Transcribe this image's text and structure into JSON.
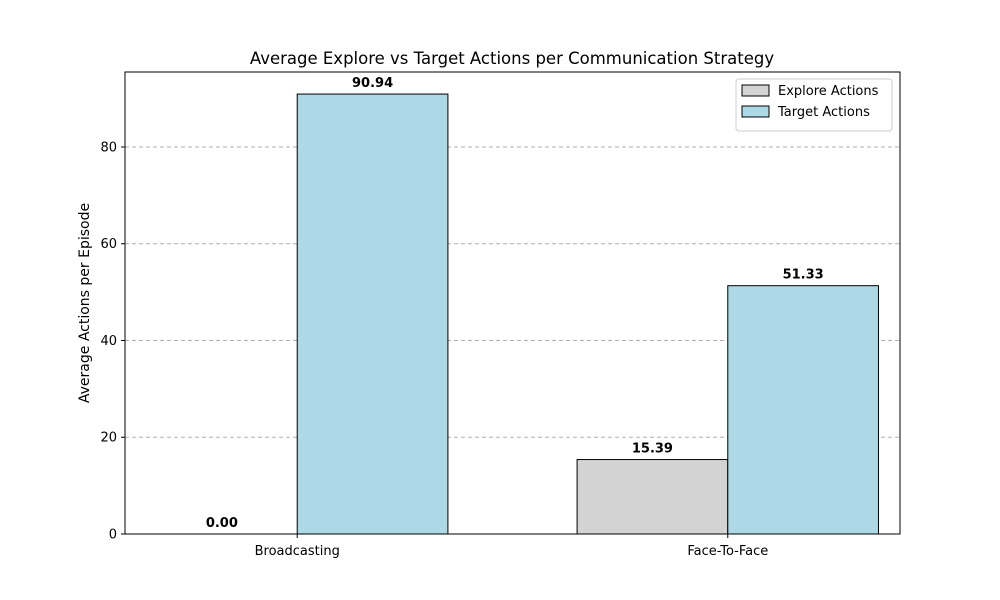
{
  "chart_data": {
    "type": "bar",
    "title": "Average Explore vs Target Actions per Communication Strategy",
    "xlabel": "",
    "ylabel": "Average Actions per Episode",
    "categories": [
      "Broadcasting",
      "Face-To-Face"
    ],
    "series": [
      {
        "name": "Explore Actions",
        "values": [
          0.0,
          15.39
        ],
        "labels": [
          "0.00",
          "15.39"
        ],
        "color": "#d3d3d3"
      },
      {
        "name": "Target Actions",
        "values": [
          90.94,
          51.33
        ],
        "labels": [
          "90.94",
          "51.33"
        ],
        "color": "#add8e6"
      }
    ],
    "ylim": [
      0,
      95.5
    ],
    "yticks": [
      0,
      20,
      40,
      60,
      80
    ],
    "grid": "y-dashed",
    "legend": "top-right"
  }
}
